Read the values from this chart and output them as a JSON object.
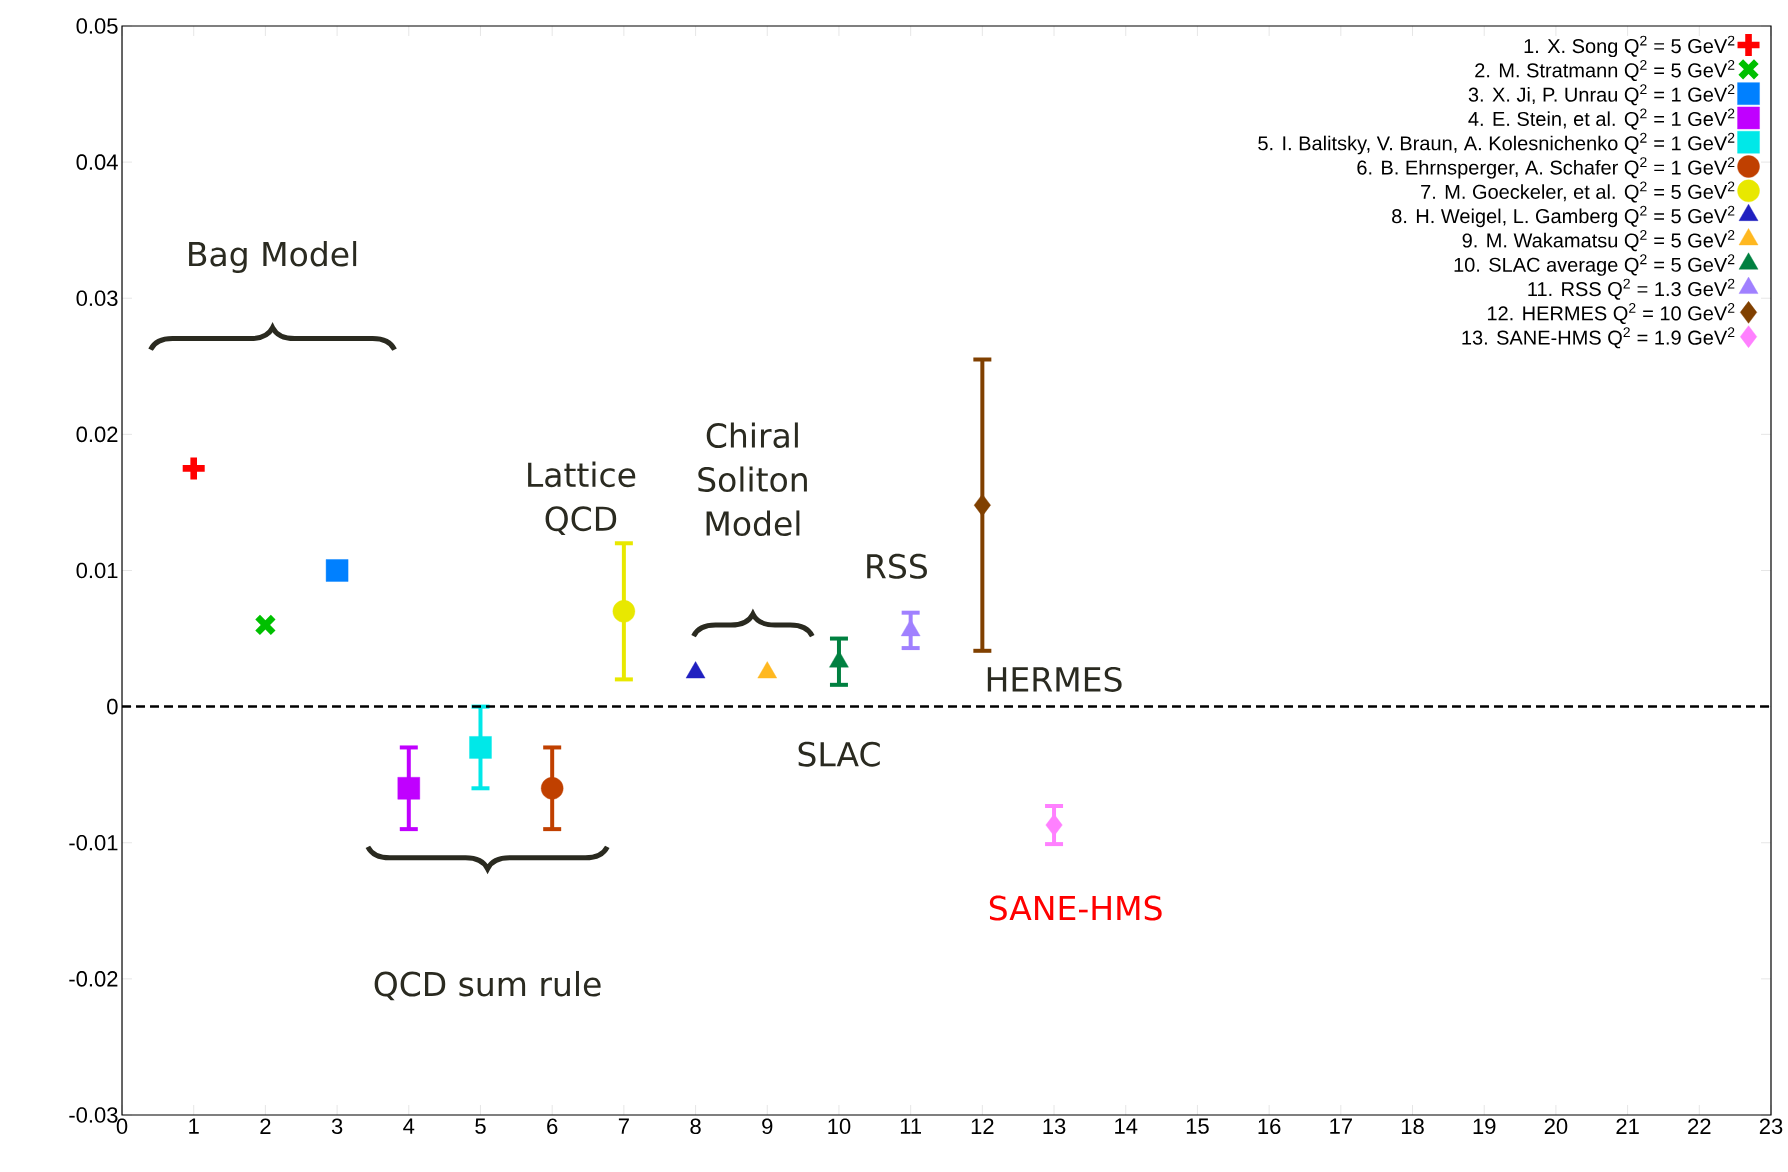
{
  "chart_data": {
    "type": "scatter",
    "xlim": [
      0,
      23
    ],
    "xticks": [
      0,
      1,
      2,
      3,
      4,
      5,
      6,
      7,
      8,
      9,
      10,
      11,
      12,
      13,
      14,
      15,
      16,
      17,
      18,
      19,
      20,
      21,
      22,
      23
    ],
    "ylim": [
      -0.03,
      0.05
    ],
    "yticks": [
      -0.03,
      -0.02,
      -0.01,
      0,
      0.01,
      0.02,
      0.03,
      0.04,
      0.05
    ],
    "legend": "top right",
    "series": [
      {
        "name": "1. X. Song Q$^{2}$ = 5 GeV$^{2}$",
        "color": "#ff0000",
        "marker": "cross",
        "x": [
          1
        ],
        "values": [
          0.0175
        ]
      },
      {
        "name": "2. M. Stratmann Q$^{2}$ = 5 GeV$^{2}$",
        "color": "#00c000",
        "marker": "cross",
        "x": [
          2
        ],
        "values": [
          0.006
        ]
      },
      {
        "name": "3. X. Ji, P. Unrau Q$^{2}$ = 1 GeV$^{2}$",
        "color": "#0080ff",
        "marker": "square",
        "x": [
          3
        ],
        "values": [
          0.01
        ]
      },
      {
        "name": "4. E. Stein, et al. Q$^{2}$ = 1 GeV$^{2}$",
        "color": "#c000ff",
        "marker": "square",
        "x": [
          4
        ],
        "values": [
          -0.006
        ],
        "errors": [
          0.003
        ]
      },
      {
        "name": "5. I. Balitsky, V. Braun, A. Kolesnichenko Q$^{2}$ = 1 GeV$^{2}$",
        "color": "#00e8e8",
        "marker": "square",
        "x": [
          5
        ],
        "values": [
          -0.003
        ],
        "errors": [
          0.003
        ]
      },
      {
        "name": "6. B. Ehrnsperger, A. Schafer Q$^{2}$ = 1 GeV$^{2}$",
        "color": "#c04000",
        "marker": "circle",
        "x": [
          6
        ],
        "values": [
          -0.006
        ],
        "errors": [
          0.003
        ]
      },
      {
        "name": "7. M. Goeckeler, et al. Q$^{2}$ = 5 GeV$^{2}$",
        "color": "#e8e800",
        "marker": "circle",
        "x": [
          7
        ],
        "values": [
          0.007
        ],
        "errors": [
          0.005
        ]
      },
      {
        "name": "8. H. Weigel, L. Gamberg Q$^{2}$ = 5 GeV$^{2}$",
        "color": "#2020c0",
        "marker": "triangle",
        "x": [
          8
        ],
        "values": [
          0.0025
        ]
      },
      {
        "name": "9. M. Wakamatsu Q$^{2}$ = 5 GeV$^{2}$",
        "color": "#ffb820",
        "marker": "triangle",
        "x": [
          9
        ],
        "values": [
          0.0025
        ]
      },
      {
        "name": "10. SLAC average Q$^{2}$ = 5 GeV$^{2}$",
        "color": "#008040",
        "marker": "triangle",
        "x": [
          10
        ],
        "values": [
          0.0033
        ],
        "errors": [
          0.0017
        ]
      },
      {
        "name": "11. RSS Q$^{2}$ = 1.3 GeV$^{2}$",
        "color": "#a080ff",
        "marker": "triangle",
        "x": [
          11
        ],
        "values": [
          0.0056
        ],
        "errors": [
          0.0013
        ]
      },
      {
        "name": "12. HERMES Q$^{2}$ = 10 GeV$^{2}$",
        "color": "#804000",
        "marker": "diamond",
        "x": [
          12
        ],
        "values": [
          0.0148
        ],
        "errors": [
          0.0107
        ]
      },
      {
        "name": "13. SANE-HMS Q$^{2}$ = 1.9 GeV$^{2}$",
        "color": "#ff80ff",
        "marker": "diamond",
        "x": [
          13
        ],
        "values": [
          -0.0087
        ],
        "errors": [
          0.0014
        ]
      }
    ],
    "ref_lines": [
      {
        "axis": "y",
        "value": 0,
        "color": "#000000",
        "line_style": "dashed"
      }
    ],
    "annotations": [
      "Bag Model",
      "QCD sum rule",
      "Lattice QCD",
      "Chiral Soliton Model",
      "RSS",
      "HERMES",
      "SLAC",
      "SANE-HMS"
    ]
  }
}
